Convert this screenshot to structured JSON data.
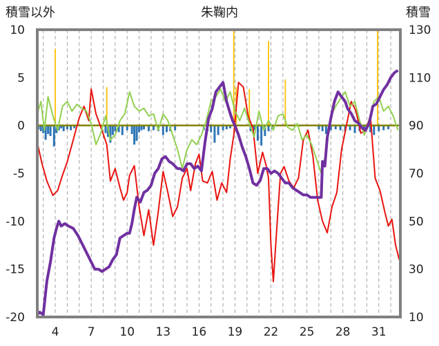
{
  "title": "朱鞠内",
  "left_axis_label": "積雪以外",
  "right_axis_label": "積雪",
  "colors": {
    "red": "#e8130f",
    "green": "#92d050",
    "purple": "#7030a0",
    "blue": "#2e75b6",
    "gold": "#ffc000",
    "zero_line": "#808000",
    "frame": "#808080",
    "grid": "#a0a0a0"
  },
  "chart_data": {
    "type": "line",
    "title": "朱鞠内",
    "xlim": [
      2.5,
      32.8
    ],
    "x_ticks": [
      4,
      7,
      10,
      13,
      16,
      19,
      22,
      25,
      28,
      31
    ],
    "x_tick_labels": [
      "4",
      "7",
      "10",
      "13",
      "16",
      "19",
      "22",
      "25",
      "28",
      "31"
    ],
    "grid": "vertical dashed lines daily",
    "y_left": {
      "label": "積雪以外",
      "lim": [
        -20,
        10
      ],
      "ticks": [
        10,
        5,
        0,
        -5,
        -10,
        -15,
        -20
      ]
    },
    "y_right": {
      "label": "積雪",
      "lim": [
        10,
        130
      ],
      "ticks": [
        130,
        110,
        90,
        70,
        50,
        30,
        10
      ]
    },
    "series": [
      {
        "axis": "left",
        "color": "#e8130f",
        "x": [
          2.5,
          2.9,
          3.3,
          3.8,
          4.2,
          4.6,
          5.0,
          5.5,
          6.0,
          6.4,
          6.8,
          7.0,
          7.4,
          7.9,
          8.3,
          8.6,
          9.0,
          9.4,
          9.7,
          10.0,
          10.2,
          10.6,
          11.0,
          11.4,
          11.8,
          12.2,
          12.6,
          13.0,
          13.4,
          13.8,
          14.2,
          14.6,
          15.0,
          15.3,
          15.7,
          16.0,
          16.3,
          16.7,
          17.1,
          17.5,
          17.9,
          18.3,
          18.6,
          18.9,
          19.3,
          19.7,
          20.1,
          20.5,
          20.9,
          21.3,
          21.6,
          21.8,
          22.0,
          22.2,
          22.5,
          22.8,
          23.1,
          23.5,
          23.9,
          24.3,
          24.7,
          25.1,
          25.5,
          25.9,
          26.3,
          26.7,
          27.1,
          27.5,
          27.9,
          28.3,
          28.7,
          29.1,
          29.5,
          29.9,
          30.3,
          30.7,
          31.1,
          31.5,
          31.8,
          32.1,
          32.4,
          32.7
        ],
        "y": [
          -1.8,
          -4.0,
          -5.8,
          -7.3,
          -6.8,
          -5.2,
          -3.8,
          -1.5,
          0.8,
          2.0,
          0.5,
          3.8,
          1.2,
          -0.5,
          -2.0,
          -5.8,
          -4.5,
          -6.5,
          -7.8,
          -7.0,
          -5.2,
          -4.2,
          -8.5,
          -11.5,
          -8.8,
          -12.5,
          -9.0,
          -4.8,
          -7.0,
          -9.5,
          -8.5,
          -5.5,
          -4.5,
          -6.8,
          -4.0,
          -3.0,
          -5.8,
          -6.0,
          -4.8,
          -7.8,
          -6.0,
          -7.0,
          -3.5,
          -1.0,
          4.5,
          4.0,
          1.0,
          -0.3,
          -5.0,
          -2.8,
          -4.2,
          -5.5,
          -12.5,
          -16.3,
          -10.5,
          -5.0,
          -4.3,
          -5.8,
          -6.5,
          -5.5,
          -1.5,
          -0.5,
          -3.2,
          -7.8,
          -10.0,
          -11.2,
          -8.5,
          -7.0,
          -2.5,
          0.0,
          2.5,
          1.5,
          -0.8,
          -0.5,
          1.0,
          -5.5,
          -6.8,
          -9.0,
          -10.5,
          -9.8,
          -12.5,
          -14.0
        ]
      },
      {
        "axis": "left",
        "color": "#92d050",
        "x": [
          2.5,
          2.8,
          3.1,
          3.4,
          3.8,
          4.2,
          4.6,
          5.0,
          5.4,
          5.8,
          6.2,
          6.6,
          7.0,
          7.4,
          7.8,
          8.2,
          8.6,
          9.0,
          9.4,
          9.8,
          10.2,
          10.6,
          11.0,
          11.4,
          11.8,
          12.2,
          12.6,
          13.0,
          13.4,
          13.8,
          14.2,
          14.6,
          15.0,
          15.4,
          15.8,
          16.2,
          16.6,
          17.0,
          17.4,
          17.8,
          18.2,
          18.6,
          19.0,
          19.4,
          19.8,
          20.2,
          20.6,
          21.0,
          21.4,
          21.8,
          22.2,
          22.6,
          23.0,
          23.4,
          23.8,
          24.2,
          24.6,
          25.0,
          25.4,
          25.8,
          26.2,
          26.6,
          27.0,
          27.4,
          27.8,
          28.2,
          28.6,
          29.0,
          29.4,
          29.8,
          30.2,
          30.6,
          31.0,
          31.4,
          31.8,
          32.2,
          32.6
        ],
        "y": [
          1.2,
          2.5,
          -0.5,
          3.0,
          1.0,
          -0.5,
          2.0,
          2.5,
          1.5,
          2.2,
          1.8,
          1.5,
          0.2,
          -2.0,
          -0.8,
          1.0,
          -1.5,
          -1.0,
          0.5,
          1.2,
          3.5,
          2.0,
          1.5,
          1.8,
          1.0,
          1.2,
          -0.5,
          1.2,
          0.5,
          -1.0,
          -2.5,
          -4.5,
          -2.5,
          -1.5,
          -2.0,
          -1.0,
          0.5,
          2.5,
          3.0,
          3.8,
          2.5,
          3.5,
          1.5,
          0.5,
          1.8,
          0.2,
          -1.2,
          1.5,
          -0.5,
          0.5,
          -0.5,
          1.0,
          1.2,
          -0.2,
          -0.5,
          0.2,
          -1.5,
          -1.0,
          -2.0,
          -3.5,
          -5.0,
          -2.8,
          1.0,
          2.0,
          2.8,
          3.5,
          2.0,
          2.5,
          0.5,
          -1.0,
          0.5,
          2.5,
          3.0,
          1.5,
          2.0,
          1.0,
          -0.5
        ]
      },
      {
        "axis": "right",
        "color": "#7030a0",
        "x": [
          2.5,
          2.7,
          3.0,
          3.3,
          3.6,
          3.9,
          4.1,
          4.3,
          4.5,
          4.8,
          5.1,
          5.5,
          5.9,
          6.3,
          6.7,
          7.0,
          7.3,
          7.6,
          7.9,
          8.2,
          8.5,
          8.8,
          9.1,
          9.4,
          9.7,
          10.0,
          10.2,
          10.4,
          10.6,
          10.8,
          11.1,
          11.4,
          11.7,
          12.0,
          12.3,
          12.6,
          12.9,
          13.2,
          13.5,
          13.8,
          14.0,
          14.2,
          14.4,
          14.7,
          15.0,
          15.3,
          15.6,
          15.9,
          16.2,
          16.5,
          16.8,
          17.1,
          17.4,
          17.7,
          18.0,
          18.3,
          18.6,
          18.8,
          19.0,
          19.3,
          19.6,
          19.9,
          20.2,
          20.5,
          20.8,
          21.1,
          21.4,
          21.7,
          22.0,
          22.3,
          22.6,
          22.9,
          23.2,
          23.5,
          23.8,
          24.1,
          24.4,
          24.7,
          25.0,
          25.3,
          25.6,
          25.9,
          26.2,
          26.3,
          26.5,
          26.7,
          27.0,
          27.3,
          27.6,
          27.9,
          28.2,
          28.4,
          28.7,
          29.0,
          29.3,
          29.6,
          29.9,
          30.2,
          30.5,
          30.8,
          31.1,
          31.4,
          31.7,
          32.0,
          32.3,
          32.6
        ],
        "y": [
          11,
          12,
          11,
          25,
          33,
          43,
          47,
          50,
          48,
          49,
          48,
          47,
          44,
          40,
          36,
          33,
          30,
          30,
          29,
          30,
          31,
          34,
          36,
          43,
          44,
          45,
          45,
          49,
          55,
          60,
          58,
          62,
          63,
          65,
          70,
          72,
          76,
          77,
          75,
          74,
          73,
          72,
          72,
          71,
          74,
          74,
          72,
          73,
          71,
          83,
          93,
          97,
          104,
          106,
          108,
          100,
          95,
          92,
          90,
          86,
          81,
          77,
          72,
          66,
          65,
          67,
          72,
          72,
          70,
          71,
          70,
          68,
          66,
          66,
          64,
          63,
          62,
          61,
          61,
          60,
          60,
          60,
          60,
          75,
          73,
          85,
          93,
          100,
          104,
          102,
          100,
          97,
          95,
          92,
          91,
          89,
          88,
          91,
          98,
          99,
          102,
          105,
          107,
          110,
          112,
          113
        ]
      }
    ],
    "precip_bars": {
      "axis": "left",
      "color": "#2e75b6",
      "note": "small downward bars below zero line",
      "x": [
        2.6,
        2.8,
        3.0,
        3.2,
        3.4,
        3.6,
        3.9,
        4.1,
        4.3,
        4.5,
        4.7,
        5.0,
        5.3,
        5.6,
        8.2,
        8.4,
        8.6,
        8.8,
        9.0,
        9.3,
        9.6,
        10.0,
        10.4,
        10.6,
        10.8,
        11.0,
        11.2,
        11.4,
        11.8,
        12.2,
        12.6,
        13.0,
        13.3,
        13.6,
        14.0,
        16.4,
        16.7,
        17.0,
        17.3,
        17.6,
        18.0,
        18.3,
        18.6,
        20.3,
        20.6,
        20.9,
        21.2,
        21.5,
        21.8,
        22.1,
        26.0,
        26.3,
        26.6,
        27.0,
        27.4,
        27.8,
        28.2,
        28.6,
        29.0,
        29.4,
        29.8,
        30.3,
        30.6,
        31.0,
        31.4,
        31.8
      ],
      "y": [
        -0.4,
        -0.6,
        -0.8,
        -1.5,
        -0.9,
        -1.1,
        -2.2,
        -0.8,
        -0.5,
        -0.3,
        -0.6,
        -0.4,
        -0.5,
        -0.3,
        -0.8,
        -1.2,
        -1.8,
        -1.0,
        -0.6,
        -0.7,
        -1.0,
        -0.5,
        -0.9,
        -2.0,
        -1.6,
        -0.7,
        -0.5,
        -0.4,
        -0.6,
        -0.5,
        -0.6,
        -1.0,
        -0.7,
        -0.6,
        -0.5,
        -0.5,
        -0.6,
        -0.7,
        -1.8,
        -1.0,
        -0.5,
        -0.4,
        -0.3,
        -0.6,
        -0.5,
        -1.6,
        -2.1,
        -1.1,
        -0.6,
        -0.4,
        -0.4,
        -0.6,
        -0.9,
        -0.5,
        -0.4,
        -0.5,
        -0.6,
        -0.5,
        -0.8,
        -0.6,
        -0.4,
        -0.7,
        -1.0,
        -0.6,
        -0.5,
        -0.4
      ]
    },
    "sun_bars": {
      "axis": "left",
      "color": "#ffc000",
      "note": "thin upward spikes from zero line",
      "x": [
        4.0,
        8.3,
        18.9,
        19.1,
        20.2,
        21.8,
        23.2,
        30.9
      ],
      "y": [
        8.0,
        4.0,
        10.0,
        4.0,
        3.8,
        8.8,
        4.8,
        10.0
      ]
    }
  }
}
